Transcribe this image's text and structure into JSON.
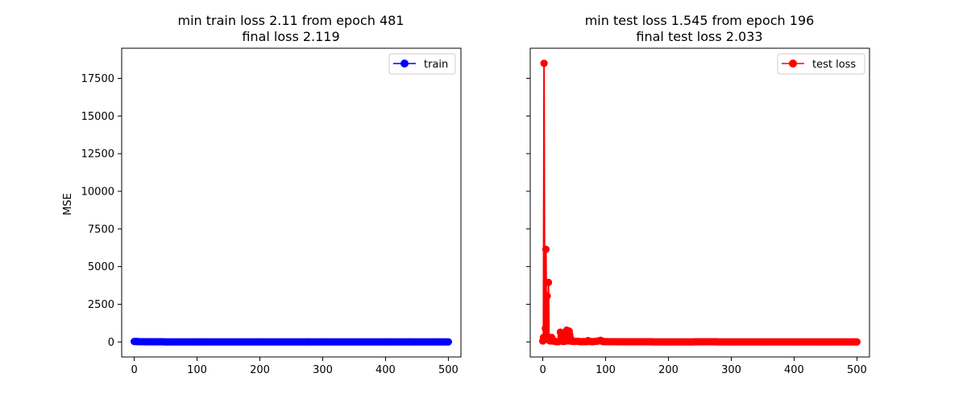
{
  "chart_data": [
    {
      "type": "line",
      "title_line1": "min train loss 2.11 from epoch 481",
      "title_line2": "final loss 2.119",
      "xlabel": "",
      "ylabel": "MSE",
      "xlim": [
        -20,
        520
      ],
      "ylim": [
        -1000,
        19500
      ],
      "xticks": [
        "0",
        "100",
        "200",
        "300",
        "400",
        "500"
      ],
      "yticks": [
        "0",
        "2500",
        "5000",
        "7500",
        "10000",
        "12500",
        "15000",
        "17500"
      ],
      "legend": "top-right",
      "series": [
        {
          "name": "train",
          "color": "#0000ff",
          "marker": "circle",
          "x_range": [
            0,
            500
          ],
          "values_note": "",
          "points": [
            [
              0,
              30
            ],
            [
              5,
              25
            ],
            [
              10,
              15
            ],
            [
              20,
              8
            ],
            [
              50,
              4
            ],
            [
              100,
              3
            ],
            [
              200,
              2.5
            ],
            [
              300,
              2.3
            ],
            [
              400,
              2.2
            ],
            [
              481,
              2.11
            ],
            [
              500,
              2.119
            ]
          ]
        }
      ]
    },
    {
      "type": "line",
      "title_line1": "min test loss 1.545 from epoch 196",
      "title_line2": "final test loss 2.033",
      "xlabel": "",
      "ylabel": "",
      "xlim": [
        -20,
        520
      ],
      "ylim": [
        -1000,
        19500
      ],
      "xticks": [
        "0",
        "100",
        "200",
        "300",
        "400",
        "500"
      ],
      "legend": "top-right",
      "series": [
        {
          "name": "test loss",
          "color": "#ff0000",
          "marker": "circle",
          "points": [
            [
              0,
              60
            ],
            [
              1,
              300
            ],
            [
              2,
              18500
            ],
            [
              3,
              200
            ],
            [
              4,
              900
            ],
            [
              5,
              6150
            ],
            [
              6,
              400
            ],
            [
              7,
              3050
            ],
            [
              8,
              150
            ],
            [
              9,
              3950
            ],
            [
              10,
              100
            ],
            [
              11,
              120
            ],
            [
              12,
              60
            ],
            [
              14,
              300
            ],
            [
              16,
              80
            ],
            [
              18,
              40
            ],
            [
              20,
              30
            ],
            [
              22,
              20
            ],
            [
              25,
              15
            ],
            [
              27,
              60
            ],
            [
              28,
              650
            ],
            [
              30,
              90
            ],
            [
              32,
              30
            ],
            [
              35,
              40
            ],
            [
              38,
              780
            ],
            [
              40,
              70
            ],
            [
              42,
              720
            ],
            [
              45,
              50
            ],
            [
              50,
              30
            ],
            [
              55,
              40
            ],
            [
              60,
              20
            ],
            [
              65,
              25
            ],
            [
              70,
              20
            ],
            [
              72,
              90
            ],
            [
              75,
              30
            ],
            [
              80,
              20
            ],
            [
              85,
              40
            ],
            [
              90,
              70
            ],
            [
              92,
              110
            ],
            [
              95,
              30
            ],
            [
              100,
              20
            ],
            [
              110,
              15
            ],
            [
              120,
              10
            ],
            [
              150,
              8
            ],
            [
              196,
              1.545
            ],
            [
              250,
              5
            ],
            [
              300,
              4
            ],
            [
              350,
              3
            ],
            [
              400,
              3
            ],
            [
              450,
              2.5
            ],
            [
              500,
              2.033
            ]
          ]
        }
      ]
    }
  ]
}
